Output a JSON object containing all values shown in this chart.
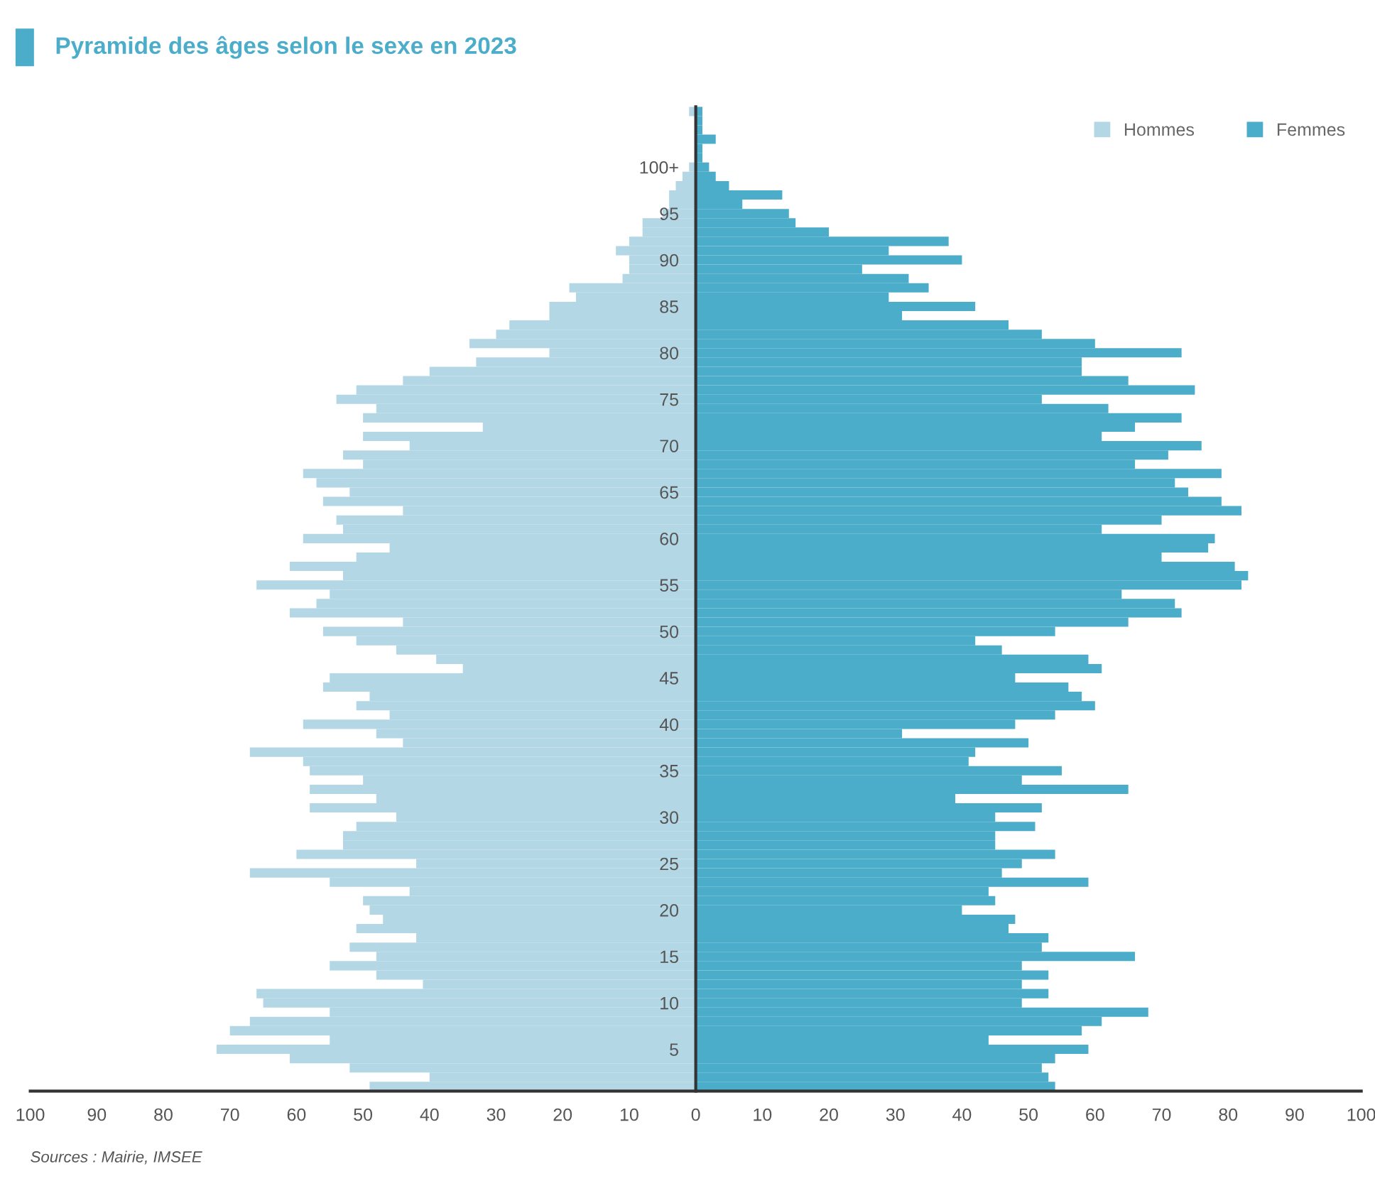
{
  "chart_data": {
    "type": "bar",
    "orientation": "horizontal",
    "title": "Pyramide des âges selon le sexe en 2023",
    "categories": [
      null,
      null,
      null,
      null,
      null,
      null,
      "100+",
      null,
      null,
      null,
      null,
      "95",
      null,
      null,
      null,
      null,
      "90",
      null,
      null,
      null,
      null,
      "85",
      null,
      null,
      null,
      null,
      "80",
      null,
      null,
      null,
      null,
      "75",
      null,
      null,
      null,
      null,
      "70",
      null,
      null,
      null,
      null,
      "65",
      null,
      null,
      null,
      null,
      "60",
      null,
      null,
      null,
      null,
      "55",
      null,
      null,
      null,
      null,
      "50",
      null,
      null,
      null,
      null,
      "45",
      null,
      null,
      null,
      null,
      "40",
      null,
      null,
      null,
      null,
      "35",
      null,
      null,
      null,
      null,
      "30",
      null,
      null,
      null,
      null,
      "25",
      null,
      null,
      null,
      null,
      "20",
      null,
      null,
      null,
      null,
      "15",
      null,
      null,
      null,
      null,
      "10",
      null,
      null,
      null,
      null,
      "5",
      null,
      null,
      null,
      null
    ],
    "series": [
      {
        "name": "Hommes",
        "color": "#b3d7e5",
        "values": [
          -1,
          0,
          0,
          0,
          0,
          0,
          -1,
          -2,
          -3,
          -4,
          -4,
          -5,
          -8,
          -8,
          -10,
          -12,
          -10,
          -10,
          -11,
          -19,
          -18,
          -22,
          -22,
          -28,
          -30,
          -34,
          -22,
          -33,
          -40,
          -44,
          -51,
          -54,
          -48,
          -50,
          -32,
          -50,
          -43,
          -53,
          -50,
          -59,
          -57,
          -52,
          -56,
          -44,
          -54,
          -53,
          -59,
          -46,
          -51,
          -61,
          -53,
          -66,
          -55,
          -57,
          -61,
          -44,
          -56,
          -51,
          -45,
          -39,
          -35,
          -55,
          -56,
          -49,
          -51,
          -46,
          -59,
          -48,
          -44,
          -67,
          -59,
          -58,
          -50,
          -58,
          -48,
          -58,
          -45,
          -51,
          -53,
          -53,
          -60,
          -42,
          -67,
          -55,
          -43,
          -50,
          -49,
          -47,
          -51,
          -42,
          -52,
          -48,
          -55,
          -48,
          -41,
          -66,
          -65,
          -55,
          -67,
          -70,
          -55,
          -72,
          -61,
          -52,
          -40,
          -49
        ]
      },
      {
        "name": "Femmes",
        "color": "#4badc9",
        "values": [
          1,
          1,
          1,
          3,
          1,
          1,
          2,
          3,
          5,
          13,
          7,
          14,
          15,
          20,
          38,
          29,
          40,
          25,
          32,
          35,
          29,
          42,
          31,
          47,
          52,
          60,
          73,
          58,
          58,
          65,
          75,
          52,
          62,
          73,
          66,
          61,
          76,
          71,
          66,
          79,
          72,
          74,
          79,
          82,
          70,
          61,
          78,
          77,
          70,
          81,
          83,
          82,
          64,
          72,
          73,
          65,
          54,
          42,
          46,
          59,
          61,
          48,
          56,
          58,
          60,
          54,
          48,
          31,
          50,
          42,
          41,
          55,
          49,
          65,
          39,
          52,
          45,
          51,
          45,
          45,
          54,
          49,
          46,
          59,
          44,
          45,
          40,
          48,
          47,
          53,
          52,
          66,
          49,
          53,
          49,
          53,
          49,
          68,
          61,
          58,
          44,
          59,
          54,
          52,
          53,
          54
        ]
      }
    ],
    "xlim": [
      -100,
      100
    ],
    "xticks": [
      {
        "value": -100,
        "label": "100"
      },
      {
        "value": -90,
        "label": "90"
      },
      {
        "value": -80,
        "label": "80"
      },
      {
        "value": -70,
        "label": "70"
      },
      {
        "value": -60,
        "label": "60"
      },
      {
        "value": -50,
        "label": "50"
      },
      {
        "value": -40,
        "label": "40"
      },
      {
        "value": -30,
        "label": "30"
      },
      {
        "value": -20,
        "label": "20"
      },
      {
        "value": -10,
        "label": "10"
      },
      0,
      10,
      20,
      30,
      40,
      50,
      60,
      70,
      80,
      90,
      100
    ],
    "legend": "top right",
    "grid": false,
    "stacked": true,
    "annotations": [
      "Sources : Mairie, IMSEE"
    ]
  }
}
